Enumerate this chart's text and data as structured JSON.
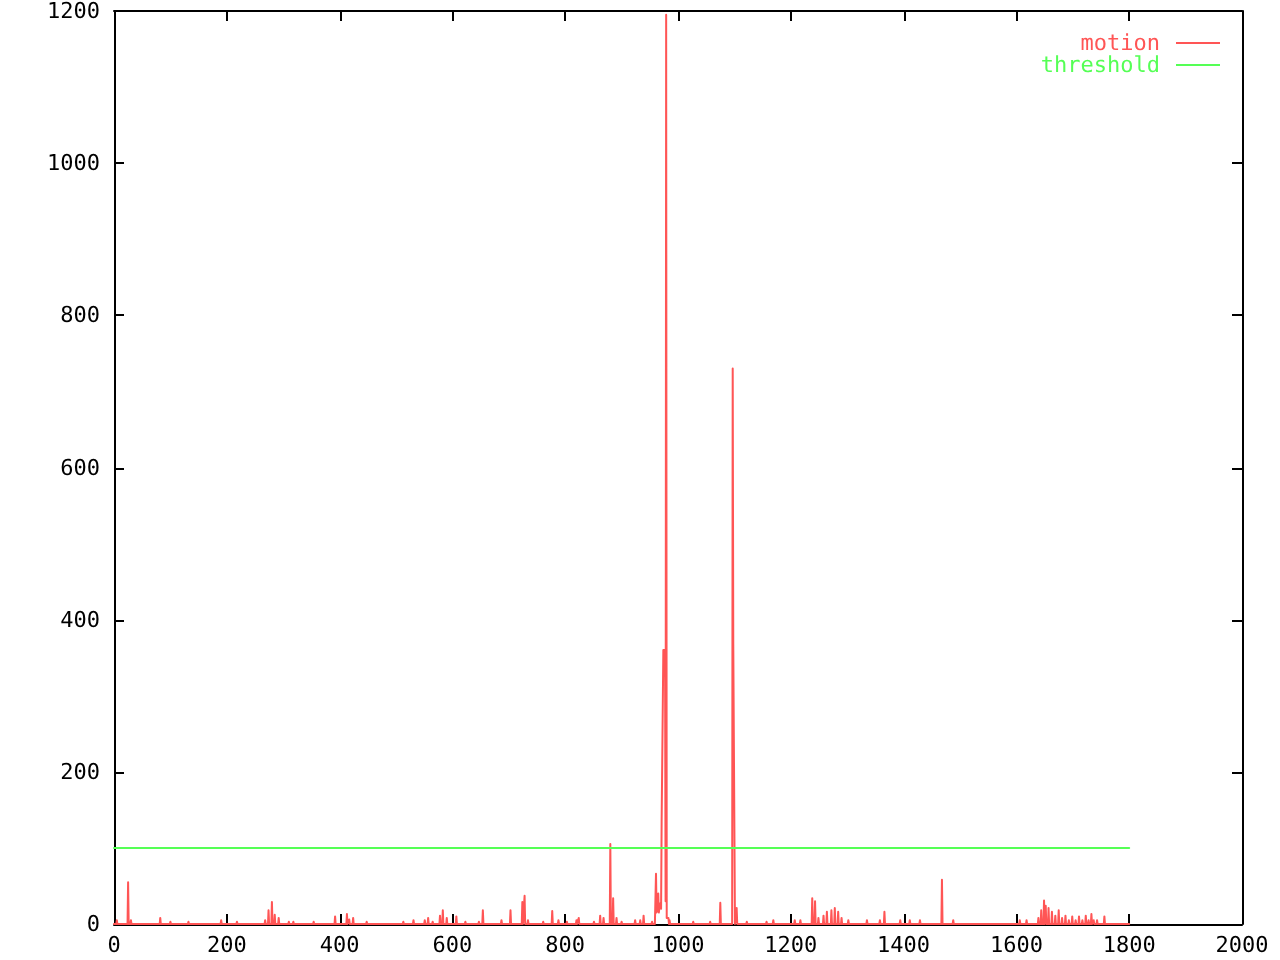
{
  "chart_data": {
    "type": "line",
    "xlim": [
      0,
      2000
    ],
    "xticks": [
      0,
      200,
      400,
      600,
      800,
      1000,
      1200,
      1400,
      1600,
      1800,
      2000
    ],
    "ylim": [
      0,
      1200
    ],
    "yticks": [
      0,
      200,
      400,
      600,
      800,
      1000,
      1200
    ],
    "legend": "top right",
    "marker": "none",
    "series": [
      {
        "name": "motion",
        "color": "#ff5555",
        "x": [
          0,
          4,
          5,
          6,
          24,
          25,
          26,
          29,
          30,
          31,
          81,
          82,
          83,
          99,
          100,
          101,
          131,
          132,
          133,
          189,
          190,
          191,
          217,
          218,
          219,
          267,
          268,
          269,
          273,
          274,
          275,
          279,
          280,
          281,
          284,
          285,
          286,
          291,
          292,
          293,
          309,
          310,
          311,
          317,
          318,
          319,
          353,
          354,
          355,
          391,
          392,
          393,
          412,
          413,
          414,
          416,
          417,
          418,
          423,
          424,
          425,
          447,
          448,
          449,
          512,
          513,
          514,
          530,
          531,
          532,
          550,
          551,
          552,
          556,
          557,
          558,
          564,
          565,
          566,
          577,
          578,
          579,
          582,
          583,
          584,
          589,
          590,
          591,
          606,
          607,
          608,
          622,
          623,
          624,
          646,
          647,
          648,
          653,
          654,
          655,
          686,
          687,
          688,
          702,
          703,
          704,
          723,
          724,
          725,
          727,
          728,
          729,
          733,
          734,
          735,
          760,
          761,
          762,
          776,
          777,
          778,
          787,
          788,
          789,
          802,
          803,
          804,
          819,
          820,
          821,
          823,
          824,
          825,
          850,
          851,
          852,
          861,
          862,
          863,
          867,
          868,
          869,
          879,
          880,
          881,
          884,
          885,
          886,
          890,
          891,
          892,
          899,
          900,
          901,
          923,
          924,
          925,
          932,
          933,
          934,
          938,
          939,
          940,
          953,
          954,
          955,
          959,
          961,
          962,
          964,
          965,
          966,
          968,
          970,
          971,
          973,
          974,
          977,
          978,
          979,
          980,
          983,
          984,
          985,
          986,
          1026,
          1027,
          1028,
          1056,
          1057,
          1058,
          1074,
          1075,
          1076,
          1096,
          1097,
          1098,
          1100,
          1101,
          1103,
          1104,
          1105,
          1121,
          1122,
          1123,
          1156,
          1157,
          1158,
          1168,
          1169,
          1170,
          1206,
          1207,
          1208,
          1216,
          1217,
          1218,
          1237,
          1238,
          1239,
          1242,
          1243,
          1244,
          1248,
          1249,
          1250,
          1257,
          1258,
          1259,
          1263,
          1264,
          1265,
          1271,
          1272,
          1273,
          1277,
          1278,
          1279,
          1283,
          1284,
          1285,
          1289,
          1290,
          1291,
          1301,
          1302,
          1303,
          1334,
          1335,
          1336,
          1357,
          1358,
          1359,
          1365,
          1366,
          1367,
          1393,
          1394,
          1395,
          1410,
          1411,
          1412,
          1428,
          1429,
          1430,
          1467,
          1468,
          1469,
          1487,
          1488,
          1489,
          1605,
          1606,
          1607,
          1617,
          1618,
          1619,
          1638,
          1639,
          1640,
          1643,
          1644,
          1645,
          1648,
          1649,
          1650,
          1651,
          1652,
          1653,
          1656,
          1657,
          1658,
          1662,
          1663,
          1664,
          1668,
          1669,
          1670,
          1674,
          1675,
          1676,
          1680,
          1681,
          1682,
          1686,
          1687,
          1688,
          1692,
          1693,
          1694,
          1698,
          1699,
          1700,
          1704,
          1705,
          1706,
          1710,
          1711,
          1712,
          1716,
          1717,
          1718,
          1722,
          1723,
          1724,
          1727,
          1728,
          1729,
          1732,
          1733,
          1734,
          1736,
          1737,
          1738,
          1742,
          1743,
          1744,
          1755,
          1756,
          1757,
          1800
        ],
        "values": [
          0,
          0,
          5,
          0,
          0,
          55,
          0,
          0,
          5,
          0,
          0,
          8,
          0,
          0,
          3,
          0,
          0,
          3,
          0,
          0,
          5,
          0,
          0,
          3,
          0,
          0,
          5,
          0,
          0,
          18,
          0,
          0,
          29,
          0,
          0,
          12,
          0,
          0,
          8,
          0,
          0,
          3,
          0,
          0,
          3,
          0,
          0,
          3,
          0,
          0,
          10,
          0,
          0,
          13,
          0,
          0,
          6,
          0,
          0,
          8,
          0,
          0,
          3,
          0,
          0,
          3,
          0,
          0,
          5,
          0,
          0,
          5,
          0,
          0,
          8,
          0,
          0,
          3,
          0,
          0,
          11,
          0,
          0,
          18,
          0,
          0,
          8,
          0,
          0,
          10,
          0,
          0,
          3,
          0,
          0,
          3,
          0,
          0,
          18,
          0,
          0,
          5,
          0,
          0,
          18,
          0,
          0,
          29,
          0,
          0,
          37,
          0,
          0,
          5,
          0,
          0,
          3,
          0,
          0,
          17,
          0,
          0,
          5,
          0,
          0,
          3,
          0,
          0,
          5,
          0,
          0,
          8,
          0,
          0,
          3,
          0,
          0,
          11,
          0,
          0,
          8,
          0,
          0,
          105,
          0,
          0,
          34,
          0,
          0,
          8,
          0,
          0,
          3,
          0,
          0,
          5,
          0,
          0,
          5,
          0,
          0,
          11,
          0,
          0,
          3,
          0,
          0,
          66,
          15,
          20,
          40,
          15,
          27,
          20,
          135,
          135,
          360,
          360,
          30,
          1195,
          8,
          8,
          0,
          5,
          0,
          0,
          3,
          0,
          0,
          3,
          0,
          0,
          28,
          0,
          0,
          730,
          368,
          368,
          0,
          0,
          21,
          0,
          0,
          3,
          0,
          0,
          3,
          0,
          0,
          5,
          0,
          0,
          5,
          0,
          0,
          5,
          0,
          0,
          34,
          0,
          0,
          30,
          0,
          0,
          8,
          0,
          0,
          11,
          0,
          0,
          16,
          0,
          0,
          18,
          0,
          0,
          21,
          0,
          0,
          16,
          0,
          0,
          8,
          0,
          0,
          5,
          0,
          0,
          5,
          0,
          0,
          5,
          0,
          0,
          16,
          0,
          0,
          5,
          0,
          0,
          5,
          0,
          0,
          5,
          0,
          0,
          58,
          0,
          0,
          5,
          0,
          0,
          5,
          0,
          0,
          5,
          0,
          0,
          8,
          0,
          0,
          18,
          0,
          0,
          31,
          0,
          0,
          24,
          0,
          0,
          21,
          0,
          0,
          16,
          0,
          0,
          11,
          0,
          0,
          18,
          0,
          0,
          8,
          0,
          0,
          11,
          0,
          0,
          5,
          0,
          0,
          10,
          0,
          0,
          5,
          0,
          0,
          10,
          0,
          0,
          5,
          0,
          0,
          11,
          0,
          0,
          5,
          0,
          0,
          13,
          0,
          0,
          5,
          0,
          0,
          5,
          0,
          0,
          10,
          0,
          0
        ]
      },
      {
        "name": "threshold",
        "color": "#55ff55",
        "x": [
          0,
          1800
        ],
        "values": [
          100,
          100
        ]
      }
    ]
  }
}
